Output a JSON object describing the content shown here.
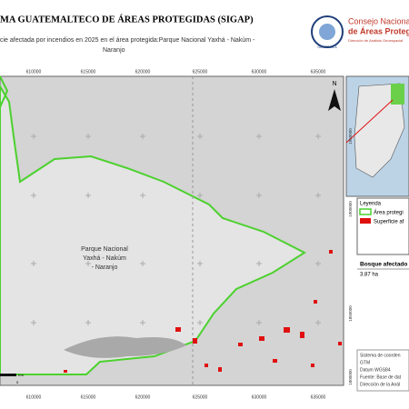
{
  "header": {
    "title": "MA GUATEMALTECO DE ÁREAS PROTEGIDAS  (SIGAP)",
    "subtitle": [
      "cie afectada por incendios en 2025 en el área protegida:Parque Nacional Yaxhá - Nakúm -",
      "Naranjo"
    ]
  },
  "logo": {
    "line1": "Consejo Nacional",
    "line2": "de Áreas Protegidas",
    "line3": "Dirección de Análisis Geoespacial",
    "country": "GUATEMALA"
  },
  "map": {
    "xticks": [
      "610000",
      "615000",
      "620000",
      "625000",
      "630000",
      "635000"
    ],
    "yticks": [
      "1950000",
      "1900000",
      "1850000",
      "1800000"
    ],
    "park_label": [
      "Parque Nacional",
      "Yaxhá - Nakúm",
      "- Naranjo"
    ],
    "north": "N",
    "scale_unit": "Km",
    "scale_end": "5"
  },
  "legend": {
    "title": "Leyenda",
    "items": [
      "Área protegi",
      "Superficie af"
    ]
  },
  "info": {
    "label": "Bosque afectado",
    "value": "3.87 ha"
  },
  "notes": [
    "Sistema de coorden",
    "GTM",
    "Datum WGS84",
    "Fuente: Base de dat",
    "Dirección de la Anál"
  ]
}
